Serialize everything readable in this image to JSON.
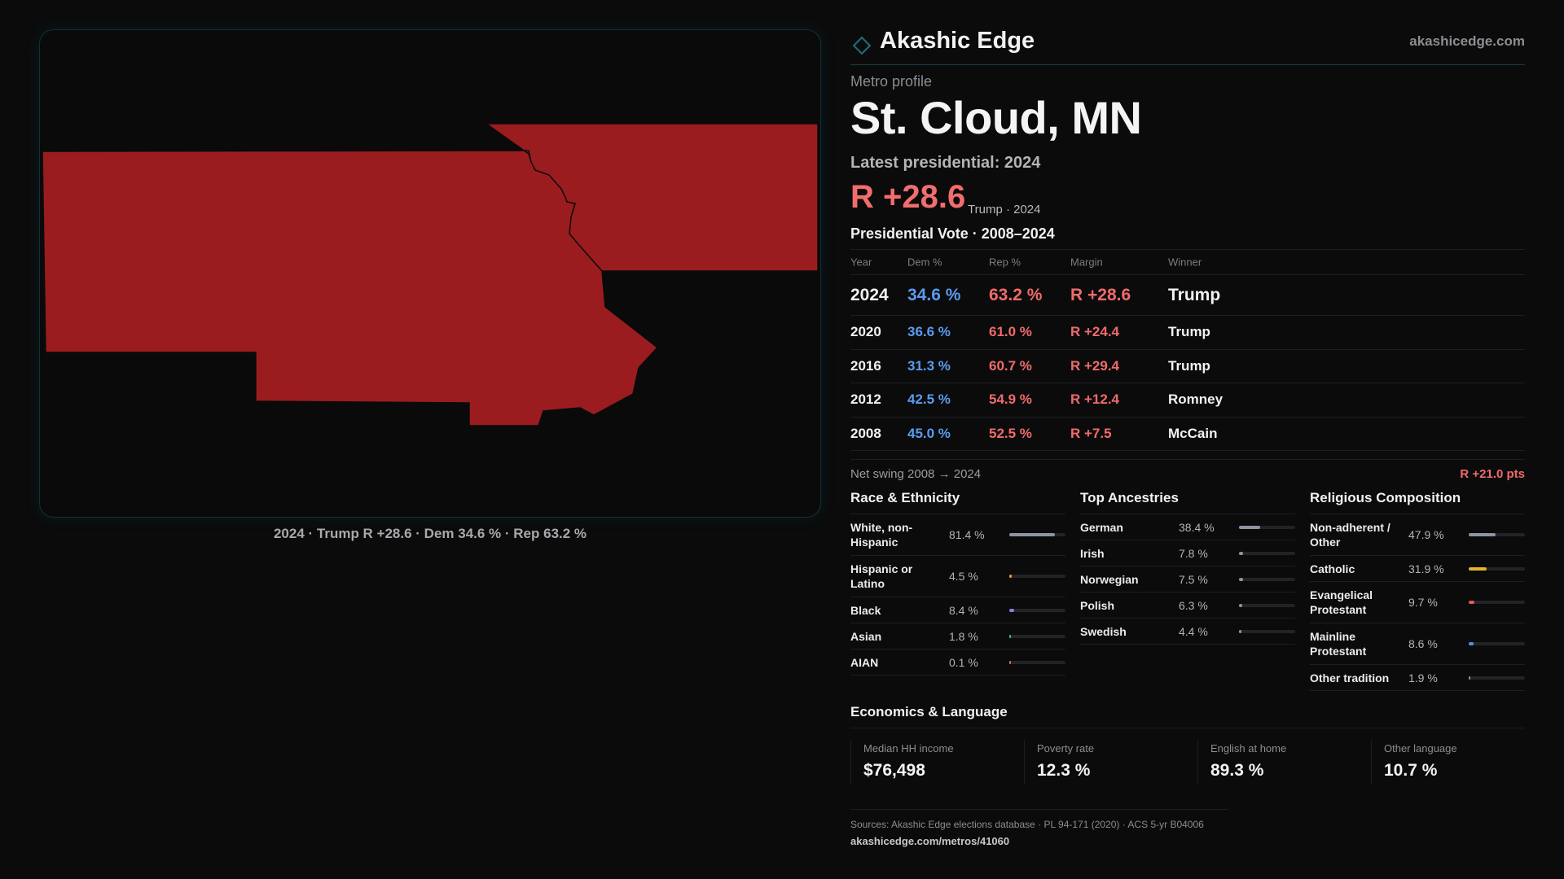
{
  "map": {
    "caption": "2024 · Trump R +28.6 · Dem 34.6 % · Rep 63.2 %",
    "fill_color": "#9b1c1f"
  },
  "brand": {
    "name": "Akashic Edge",
    "url": "akashicedge.com",
    "icon": "diamond-outline-icon",
    "accent": "#1f6f7c"
  },
  "profile": {
    "eyebrow": "Metro profile",
    "title": "St. Cloud, MN",
    "latest_label": "Latest presidential: 2024",
    "margin": "R +28.6",
    "margin_sub": "Trump · 2024"
  },
  "vote": {
    "section_title": "Presidential Vote · 2008–2024",
    "headers": {
      "year": "Year",
      "dem": "Dem %",
      "rep": "Rep %",
      "margin": "Margin",
      "winner": "Winner"
    },
    "rows": [
      {
        "year": "2024",
        "dem": "34.6 %",
        "rep": "63.2 %",
        "margin": "R +28.6",
        "winner": "Trump"
      },
      {
        "year": "2020",
        "dem": "36.6 %",
        "rep": "61.0 %",
        "margin": "R +24.4",
        "winner": "Trump"
      },
      {
        "year": "2016",
        "dem": "31.3 %",
        "rep": "60.7 %",
        "margin": "R +29.4",
        "winner": "Trump"
      },
      {
        "year": "2012",
        "dem": "42.5 %",
        "rep": "54.9 %",
        "margin": "R +12.4",
        "winner": "Romney"
      },
      {
        "year": "2008",
        "dem": "45.0 %",
        "rep": "52.5 %",
        "margin": "R +7.5",
        "winner": "McCain"
      }
    ],
    "swing_label": "Net swing 2008 → 2024",
    "swing_value": "R +21.0 pts"
  },
  "race": {
    "title": "Race & Ethnicity",
    "items": [
      {
        "label": "White, non-Hispanic",
        "value": "81.4 %",
        "share": 0.814,
        "color": "#8e94a3"
      },
      {
        "label": "Hispanic or Latino",
        "value": "4.5 %",
        "share": 0.045,
        "color": "#e59a2b"
      },
      {
        "label": "Black",
        "value": "8.4 %",
        "share": 0.084,
        "color": "#8b7be0"
      },
      {
        "label": "Asian",
        "value": "1.8 %",
        "share": 0.018,
        "color": "#3bbfa0"
      },
      {
        "label": "AIAN",
        "value": "0.1 %",
        "share": 0.001,
        "color": "#c87a5a"
      }
    ]
  },
  "ancestry": {
    "title": "Top Ancestries",
    "items": [
      {
        "label": "German",
        "value": "38.4 %",
        "share": 0.384,
        "color": "#8e94a3"
      },
      {
        "label": "Irish",
        "value": "7.8 %",
        "share": 0.078,
        "color": "#8e94a3"
      },
      {
        "label": "Norwegian",
        "value": "7.5 %",
        "share": 0.075,
        "color": "#8e94a3"
      },
      {
        "label": "Polish",
        "value": "6.3 %",
        "share": 0.063,
        "color": "#8e94a3"
      },
      {
        "label": "Swedish",
        "value": "4.4 %",
        "share": 0.044,
        "color": "#8e94a3"
      }
    ]
  },
  "religion": {
    "title": "Religious Composition",
    "items": [
      {
        "label": "Non-adherent / Other",
        "value": "47.9 %",
        "share": 0.479,
        "color": "#8e94a3"
      },
      {
        "label": "Catholic",
        "value": "31.9 %",
        "share": 0.319,
        "color": "#e5b42b"
      },
      {
        "label": "Evangelical Protestant",
        "value": "9.7 %",
        "share": 0.097,
        "color": "#e0584e"
      },
      {
        "label": "Mainline Protestant",
        "value": "8.6 %",
        "share": 0.086,
        "color": "#4f8fe8"
      },
      {
        "label": "Other tradition",
        "value": "1.9 %",
        "share": 0.019,
        "color": "#8e94a3"
      }
    ]
  },
  "economics": {
    "title": "Economics & Language",
    "items": [
      {
        "label": "Median HH income",
        "value": "$76,498"
      },
      {
        "label": "Poverty rate",
        "value": "12.3 %"
      },
      {
        "label": "English at home",
        "value": "89.3 %"
      },
      {
        "label": "Other language",
        "value": "10.7 %"
      }
    ]
  },
  "footer": {
    "sources": "Sources: Akashic Edge elections database · PL 94-171 (2020) · ACS 5-yr B04006",
    "url": "akashicedge.com/metros/41060"
  }
}
